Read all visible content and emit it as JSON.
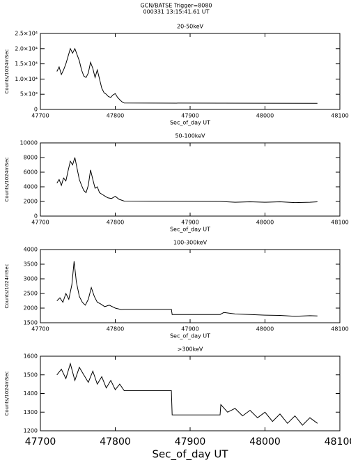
{
  "header": {
    "title": "GCN/BATSE  Trigger=8080",
    "subtitle": "000331 13:15:41.61 UT"
  },
  "chart_data": [
    {
      "type": "line",
      "title": "20-50keV",
      "xlabel": "Sec_of_day UT",
      "ylabel": "Counts/1024mSec",
      "color": "#000000",
      "xlim": [
        47700,
        48100
      ],
      "xticks": [
        47700,
        47800,
        47900,
        48000,
        48100
      ],
      "ylim": [
        0,
        25000
      ],
      "yticks": [
        0,
        {
          "value": 5000,
          "label": "5×10³"
        },
        {
          "value": 10000,
          "label": "1.0×10⁴"
        },
        {
          "value": 15000,
          "label": "1.5×10⁴"
        },
        {
          "value": 20000,
          "label": "2.0×10⁴"
        },
        {
          "value": 25000,
          "label": "2.5×10⁴"
        }
      ],
      "x": [
        47722,
        47725,
        47728,
        47731,
        47734,
        47737,
        47740,
        47743,
        47746,
        47749,
        47752,
        47755,
        47758,
        47761,
        47764,
        47767,
        47770,
        47773,
        47776,
        47779,
        47782,
        47785,
        47788,
        47791,
        47794,
        47797,
        47800,
        47803,
        47806,
        47809,
        47812,
        48070
      ],
      "values": [
        12500,
        14000,
        11500,
        13000,
        15000,
        17500,
        20000,
        18500,
        20000,
        18000,
        16000,
        13000,
        11000,
        10500,
        12000,
        15500,
        13500,
        10500,
        13000,
        10000,
        7000,
        5500,
        5000,
        4200,
        4000,
        4800,
        5200,
        4000,
        3200,
        2500,
        2100,
        2000
      ]
    },
    {
      "type": "line",
      "title": "50-100keV",
      "xlabel": "Sec_of_day UT",
      "ylabel": "Counts/1024mSec",
      "color": "#000000",
      "xlim": [
        47700,
        48100
      ],
      "xticks": [
        47700,
        47800,
        47900,
        48000,
        48100
      ],
      "ylim": [
        0,
        10000
      ],
      "yticks": [
        0,
        2000,
        4000,
        6000,
        8000,
        10000
      ],
      "x": [
        47722,
        47725,
        47728,
        47731,
        47734,
        47737,
        47740,
        47743,
        47746,
        47749,
        47752,
        47755,
        47758,
        47761,
        47764,
        47767,
        47770,
        47773,
        47776,
        47779,
        47782,
        47785,
        47790,
        47795,
        47800,
        47805,
        47812,
        47940,
        47960,
        47980,
        48000,
        48020,
        48040,
        48060,
        48070
      ],
      "values": [
        4500,
        5000,
        4200,
        5200,
        4800,
        6200,
        7500,
        7000,
        8000,
        6500,
        5000,
        4200,
        3500,
        3200,
        4200,
        6300,
        5000,
        3800,
        4000,
        3200,
        3000,
        2800,
        2500,
        2400,
        2700,
        2300,
        2050,
        2000,
        1900,
        1950,
        1900,
        1950,
        1850,
        1900,
        1950
      ]
    },
    {
      "type": "line",
      "title": "100-300keV",
      "xlabel": "Sec_of_day UT",
      "ylabel": "Counts/1024mSec",
      "color": "#000000",
      "xlim": [
        47700,
        48100
      ],
      "xticks": [
        47700,
        47800,
        47900,
        48000,
        48100
      ],
      "ylim": [
        1500,
        4000
      ],
      "yticks": [
        1500,
        2000,
        2500,
        3000,
        3500,
        4000
      ],
      "x": [
        47722,
        47726,
        47730,
        47734,
        47738,
        47742,
        47745,
        47748,
        47752,
        47756,
        47760,
        47764,
        47768,
        47772,
        47776,
        47780,
        47786,
        47792,
        47800,
        47808,
        47812,
        47875,
        47876,
        47940,
        47945,
        47960,
        47980,
        48000,
        48020,
        48040,
        48060,
        48070
      ],
      "values": [
        2250,
        2350,
        2200,
        2500,
        2300,
        2800,
        3600,
        2900,
        2400,
        2200,
        2100,
        2300,
        2700,
        2400,
        2200,
        2150,
        2050,
        2100,
        2000,
        1950,
        1960,
        1960,
        1780,
        1780,
        1850,
        1800,
        1780,
        1760,
        1750,
        1720,
        1740,
        1730
      ]
    },
    {
      "type": "line",
      "title": ">300keV",
      "xlabel": "Sec_of_day UT",
      "ylabel": "Counts/1024mSec",
      "color": "#000000",
      "xlim": [
        47700,
        48100
      ],
      "xticks": [
        47700,
        47800,
        47900,
        48000,
        48100
      ],
      "ylim": [
        1200,
        1600
      ],
      "yticks": [
        1200,
        1300,
        1400,
        1500,
        1600
      ],
      "x": [
        47722,
        47728,
        47734,
        47740,
        47746,
        47752,
        47758,
        47764,
        47770,
        47776,
        47782,
        47788,
        47794,
        47800,
        47806,
        47812,
        47875,
        47876,
        47940,
        47941,
        47950,
        47960,
        47970,
        47980,
        47990,
        48000,
        48010,
        48020,
        48030,
        48040,
        48050,
        48060,
        48070
      ],
      "values": [
        1500,
        1530,
        1480,
        1560,
        1470,
        1540,
        1500,
        1460,
        1520,
        1450,
        1490,
        1430,
        1470,
        1420,
        1450,
        1415,
        1415,
        1285,
        1285,
        1340,
        1300,
        1320,
        1280,
        1310,
        1270,
        1300,
        1250,
        1290,
        1240,
        1280,
        1230,
        1270,
        1240
      ]
    }
  ]
}
